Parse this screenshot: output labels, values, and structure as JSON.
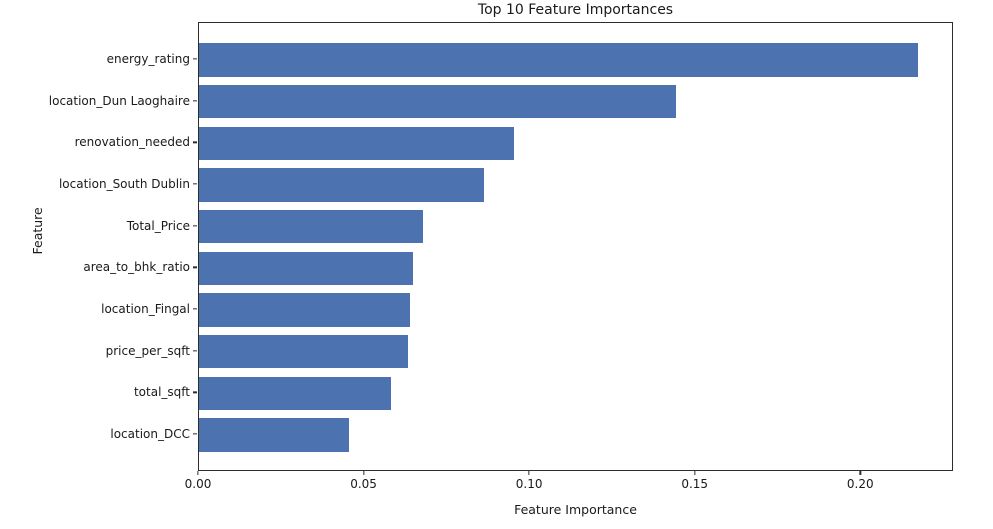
{
  "chart_data": {
    "type": "bar",
    "orientation": "horizontal",
    "title": "Top 10 Feature Importances",
    "xlabel": "Feature Importance",
    "ylabel": "Feature",
    "categories": [
      "energy_rating",
      "location_Dun Laoghaire",
      "renovation_needed",
      "location_South Dublin",
      "Total_Price",
      "area_to_bhk_ratio",
      "location_Fingal",
      "price_per_sqft",
      "total_sqft",
      "location_DCC"
    ],
    "values": [
      0.217,
      0.144,
      0.095,
      0.086,
      0.0675,
      0.0645,
      0.0637,
      0.0632,
      0.058,
      0.0453
    ],
    "xlim": [
      0,
      0.228
    ],
    "xticks": [
      0.0,
      0.05,
      0.1,
      0.15,
      0.2
    ],
    "xtick_labels": [
      "0.00",
      "0.05",
      "0.10",
      "0.15",
      "0.20"
    ],
    "bar_color": "#4C72B0",
    "bar_relative_height": 0.8,
    "grid": false,
    "legend_position": "none"
  }
}
